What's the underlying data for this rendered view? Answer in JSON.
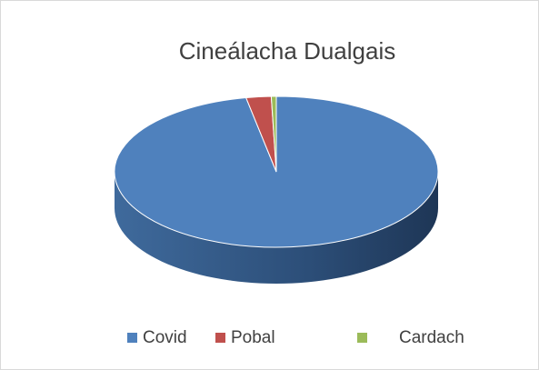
{
  "chart_data": {
    "type": "pie",
    "title": "Cineálacha Dualgais",
    "categories": [
      "Covid",
      "Pobal",
      "Cardach"
    ],
    "values": [
      97,
      2.5,
      0.5
    ],
    "colors": [
      "#4f81bd",
      "#c0504d",
      "#9bbb59"
    ],
    "legend": "bottom"
  }
}
